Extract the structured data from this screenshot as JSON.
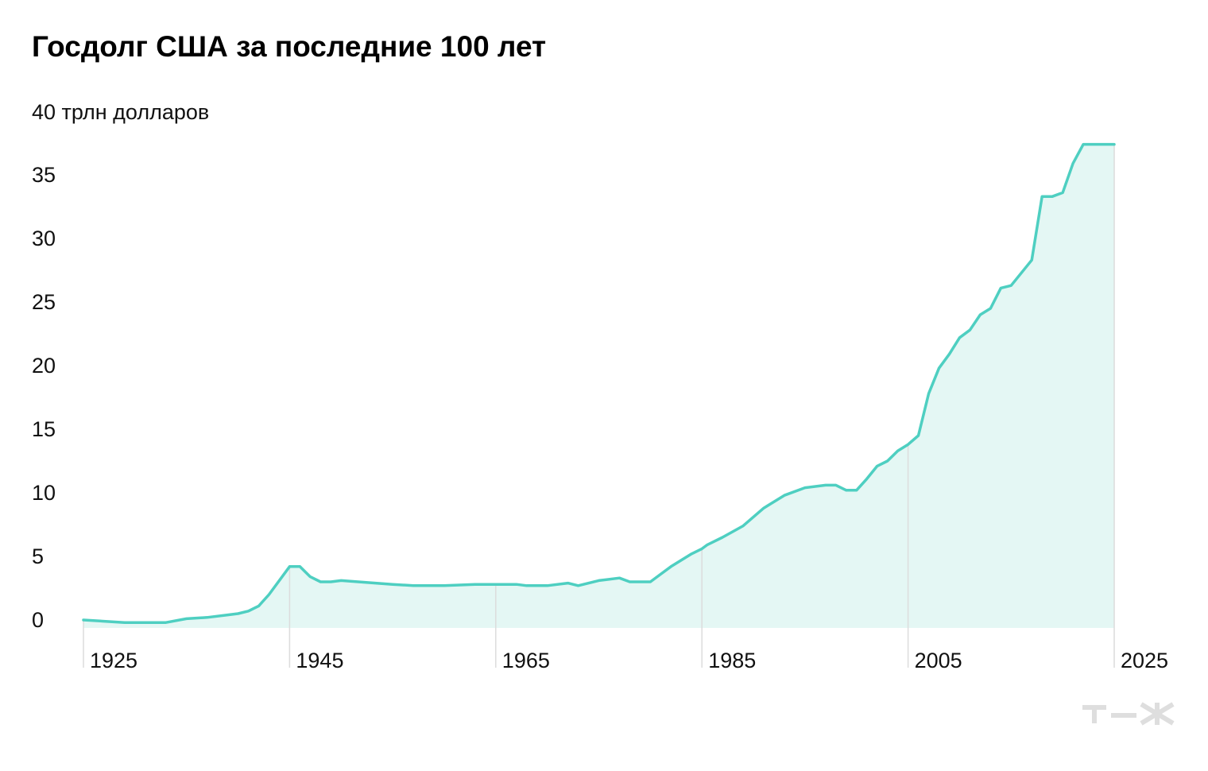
{
  "title": "Госдолг США за последние 100 лет",
  "chart_data": {
    "type": "area",
    "title": "Госдолг США за последние 100 лет",
    "ylabel": "40 трлн долларов",
    "ylim": [
      0,
      40
    ],
    "xlim": [
      1925,
      2025
    ],
    "x_ticks": [
      "1925",
      "1945",
      "1965",
      "1985",
      "2005",
      "2025"
    ],
    "y_ticks": [
      "0",
      "5",
      "10",
      "15",
      "20",
      "25",
      "30",
      "35"
    ],
    "y_tick_values": [
      0,
      5,
      10,
      15,
      20,
      25,
      30,
      35
    ],
    "grid": false,
    "colors": {
      "line": "#4ecfc1",
      "fill": "#e4f7f4",
      "marker": "#dcdcdc",
      "text": "#111111"
    },
    "series": [
      {
        "x": [
          1925,
          1927,
          1929,
          1931,
          1933,
          1935,
          1937,
          1939,
          1940,
          1941,
          1942,
          1943,
          1945,
          1946,
          1947,
          1948,
          1949,
          1950,
          1955,
          1957,
          1960,
          1963,
          1965,
          1967,
          1968,
          1970,
          1972,
          1973,
          1975,
          1977,
          1978,
          1980,
          1981,
          1982,
          1983,
          1984,
          1985,
          1985.5,
          1987,
          1989,
          1991,
          1993,
          1995,
          1997,
          1998,
          1999,
          2000,
          2001,
          2002,
          2003,
          2004,
          2005,
          2006,
          2007,
          2008,
          2009,
          2010,
          2011,
          2012,
          2013,
          2014,
          2015,
          2016,
          2017,
          2018,
          2019,
          2020,
          2021,
          2022,
          2023,
          2024,
          2025
        ],
        "y": [
          0,
          -0.1,
          -0.2,
          -0.2,
          -0.2,
          0.1,
          0.2,
          0.4,
          0.5,
          0.7,
          1.1,
          2.0,
          4.2,
          4.2,
          3.4,
          3.0,
          3.0,
          3.1,
          2.8,
          2.7,
          2.7,
          2.8,
          2.8,
          2.8,
          2.7,
          2.7,
          2.9,
          2.7,
          3.1,
          3.3,
          3.0,
          3.0,
          3.6,
          4.2,
          4.7,
          5.2,
          5.6,
          5.9,
          6.5,
          7.4,
          8.8,
          9.8,
          10.4,
          10.6,
          10.6,
          10.2,
          10.2,
          11.1,
          12.1,
          12.5,
          13.3,
          13.8,
          14.5,
          17.8,
          19.8,
          20.9,
          22.2,
          22.8,
          24.0,
          24.5,
          26.1,
          26.3,
          27.3,
          28.3,
          33.3,
          33.3,
          33.6,
          35.9,
          37.4,
          37.4,
          37.4,
          37.4
        ]
      }
    ]
  },
  "logo_text": "т—ж"
}
